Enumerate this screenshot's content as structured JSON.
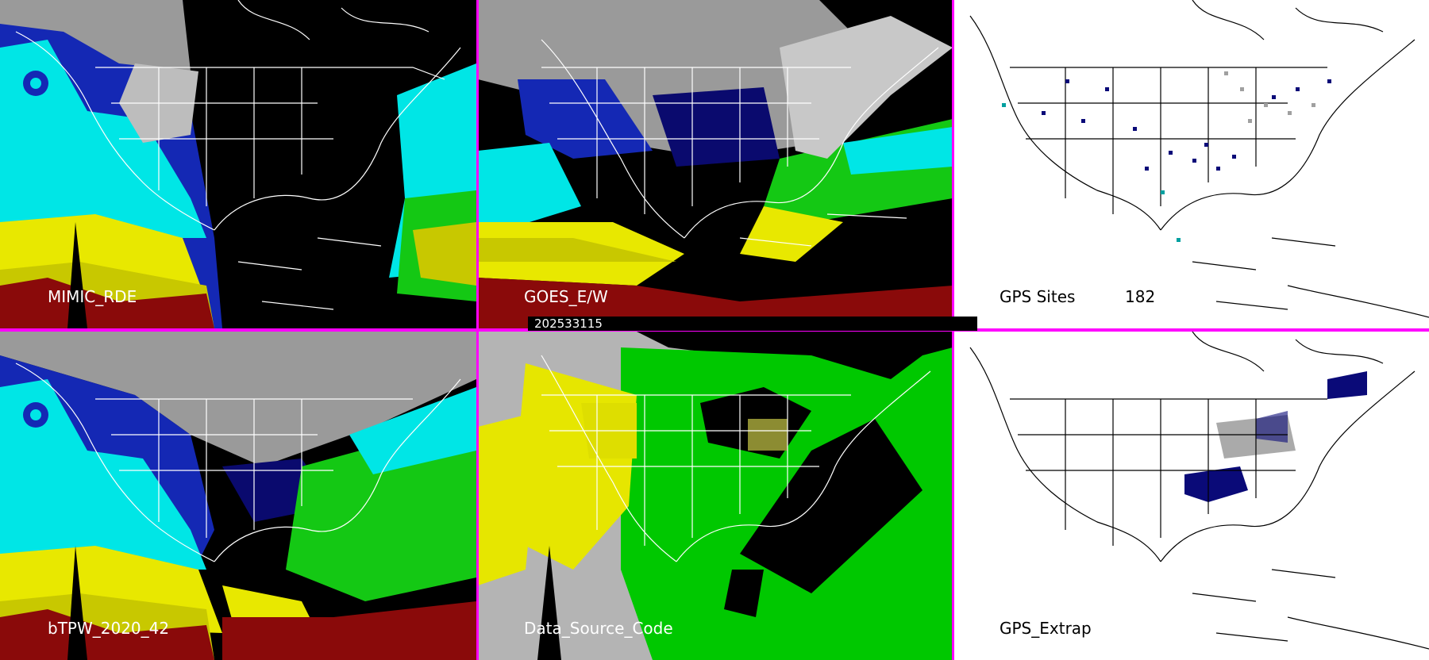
{
  "colors": {
    "separator": "#ff00ff",
    "land_bg": "#000000",
    "map_white_bg": "#ffffff",
    "tpw_scale": [
      "#8a0a0a",
      "#c8c800",
      "#e8e800",
      "#14c814",
      "#00ffff",
      "#1428b4",
      "#0a0a6e",
      "#b4b4b4"
    ],
    "source_code_scale": [
      "#b4b4b4",
      "#e6e600",
      "#00c800",
      "#000000",
      "#8c8c32"
    ],
    "gps_dots": [
      "#0a0a78",
      "#a0a0a0",
      "#00a0a0"
    ]
  },
  "timestamp": "202533115",
  "panels": [
    {
      "id": "mimic-rde",
      "label": "MIMIC_RDE"
    },
    {
      "id": "goes-ew",
      "label": "GOES_E/W"
    },
    {
      "id": "gps-sites",
      "label": "GPS Sites",
      "count": "182"
    },
    {
      "id": "btpw",
      "label": "bTPW_2020_42"
    },
    {
      "id": "data-source",
      "label": "Data_Source_Code"
    },
    {
      "id": "gps-extrap",
      "label": "GPS_Extrap"
    }
  ]
}
